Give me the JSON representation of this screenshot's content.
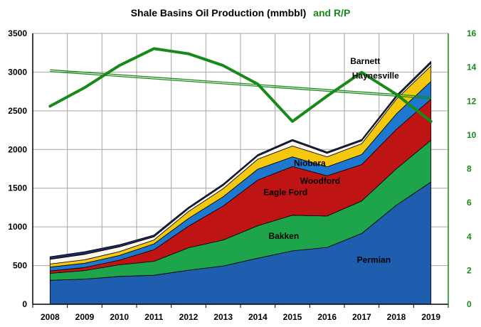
{
  "chart_data": {
    "type": "area",
    "title": "Shale Basins Oil Production (mmbbl)",
    "title_suffix": "and R/P",
    "x": [
      "2008",
      "2009",
      "2010",
      "2011",
      "2012",
      "2013",
      "2014",
      "2015",
      "2016",
      "2017",
      "2018",
      "2019"
    ],
    "ylim": [
      0,
      3500
    ],
    "y_ticks": [
      "0",
      "500",
      "1000",
      "1500",
      "2000",
      "2500",
      "3000",
      "3500"
    ],
    "y2lim": [
      0,
      16
    ],
    "y2_ticks": [
      "0",
      "2",
      "4",
      "6",
      "8",
      "10",
      "12",
      "14",
      "16"
    ],
    "grid": true,
    "stacked_series": [
      {
        "name": "Permian",
        "color": "#1F5DAE",
        "values": [
          310,
          325,
          360,
          375,
          440,
          495,
          595,
          690,
          735,
          915,
          1280,
          1580
        ]
      },
      {
        "name": "Bakken",
        "color": "#1EA44A",
        "values": [
          90,
          110,
          150,
          180,
          290,
          335,
          420,
          460,
          405,
          420,
          470,
          540
        ]
      },
      {
        "name": "Eagle Ford",
        "color": "#BF1414",
        "values": [
          30,
          40,
          60,
          150,
          280,
          440,
          590,
          630,
          520,
          470,
          510,
          530
        ]
      },
      {
        "name": "Woodford",
        "color": "#1F78D0",
        "values": [
          50,
          55,
          60,
          75,
          100,
          120,
          140,
          125,
          115,
          130,
          200,
          230
        ]
      },
      {
        "name": "Niobara",
        "color": "#F4C80F",
        "values": [
          40,
          45,
          50,
          50,
          90,
          105,
          130,
          140,
          130,
          140,
          190,
          200
        ]
      },
      {
        "name": "Haynesville",
        "color": "#FFF8EA",
        "values": [
          60,
          70,
          60,
          40,
          35,
          40,
          40,
          65,
          45,
          35,
          25,
          35
        ]
      },
      {
        "name": "Barnett",
        "color": "#1B2A5E",
        "values": [
          35,
          35,
          30,
          25,
          20,
          20,
          20,
          20,
          20,
          20,
          25,
          25
        ]
      }
    ],
    "rp_series": {
      "name": "R/P",
      "color": "#178A17",
      "values": [
        11.7,
        12.8,
        14.1,
        15.1,
        14.8,
        14.1,
        13.0,
        10.8,
        12.3,
        13.7,
        12.4,
        10.8
      ]
    },
    "rp_trend": {
      "color": "#178A17",
      "start": 13.8,
      "end": 12.2
    },
    "annotations": [
      {
        "text": "Barnett",
        "series": "Barnett"
      },
      {
        "text": "Haynesville",
        "series": "Haynesville"
      },
      {
        "text": "Niobara",
        "series": "Niobara"
      },
      {
        "text": "Woodford",
        "series": "Woodford"
      },
      {
        "text": "Eagle Ford",
        "series": "Eagle Ford"
      },
      {
        "text": "Bakken",
        "series": "Bakken"
      },
      {
        "text": "Permian",
        "series": "Permian"
      }
    ],
    "colors": {
      "axis": "#000000",
      "grid": "#A6A6A6",
      "title": "#000000",
      "title_suffix": "#178A17",
      "right_axis": "#178A17"
    }
  }
}
